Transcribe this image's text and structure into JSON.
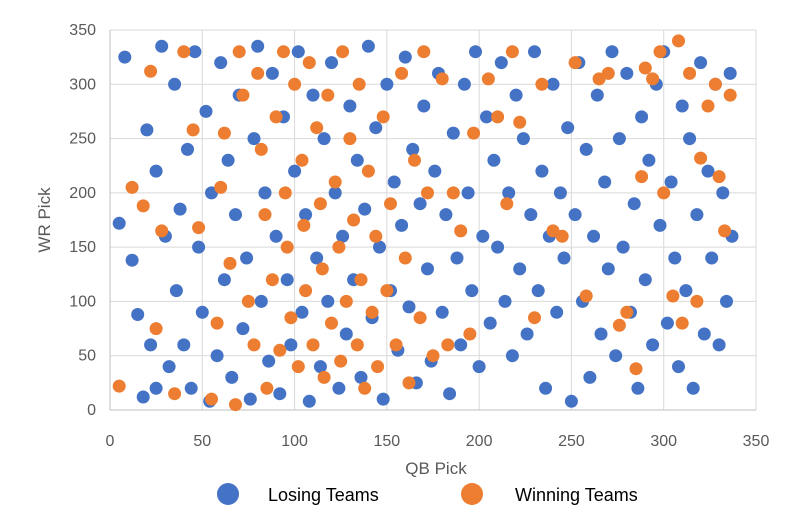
{
  "chart_data": {
    "type": "scatter",
    "xlabel": "QB Pick",
    "ylabel": "WR Pick",
    "xlim": [
      0,
      350
    ],
    "ylim": [
      0,
      350
    ],
    "x_ticks": [
      "0",
      "50",
      "100",
      "150",
      "200",
      "250",
      "300",
      "350"
    ],
    "y_ticks": [
      "0",
      "50",
      "100",
      "150",
      "200",
      "250",
      "300",
      "350"
    ],
    "grid": "both",
    "legend_position": "bottom",
    "series": [
      {
        "name": "Losing Teams",
        "color": "#4472c4",
        "points": [
          [
            5,
            172
          ],
          [
            12,
            138
          ],
          [
            8,
            325
          ],
          [
            15,
            88
          ],
          [
            18,
            12
          ],
          [
            20,
            258
          ],
          [
            22,
            60
          ],
          [
            25,
            20
          ],
          [
            25,
            220
          ],
          [
            28,
            335
          ],
          [
            30,
            160
          ],
          [
            32,
            40
          ],
          [
            35,
            300
          ],
          [
            36,
            110
          ],
          [
            38,
            185
          ],
          [
            40,
            60
          ],
          [
            42,
            240
          ],
          [
            44,
            20
          ],
          [
            46,
            330
          ],
          [
            48,
            150
          ],
          [
            50,
            90
          ],
          [
            52,
            275
          ],
          [
            54,
            8
          ],
          [
            55,
            200
          ],
          [
            58,
            50
          ],
          [
            60,
            320
          ],
          [
            62,
            120
          ],
          [
            64,
            230
          ],
          [
            66,
            30
          ],
          [
            68,
            180
          ],
          [
            70,
            290
          ],
          [
            72,
            75
          ],
          [
            74,
            140
          ],
          [
            76,
            10
          ],
          [
            78,
            250
          ],
          [
            80,
            335
          ],
          [
            82,
            100
          ],
          [
            84,
            200
          ],
          [
            86,
            45
          ],
          [
            88,
            310
          ],
          [
            90,
            160
          ],
          [
            92,
            15
          ],
          [
            94,
            270
          ],
          [
            96,
            120
          ],
          [
            98,
            60
          ],
          [
            100,
            220
          ],
          [
            102,
            330
          ],
          [
            104,
            90
          ],
          [
            106,
            180
          ],
          [
            108,
            8
          ],
          [
            110,
            290
          ],
          [
            112,
            140
          ],
          [
            114,
            40
          ],
          [
            116,
            250
          ],
          [
            118,
            100
          ],
          [
            120,
            320
          ],
          [
            122,
            200
          ],
          [
            124,
            20
          ],
          [
            126,
            160
          ],
          [
            128,
            70
          ],
          [
            130,
            280
          ],
          [
            132,
            120
          ],
          [
            134,
            230
          ],
          [
            136,
            30
          ],
          [
            138,
            185
          ],
          [
            140,
            335
          ],
          [
            142,
            85
          ],
          [
            144,
            260
          ],
          [
            146,
            150
          ],
          [
            148,
            10
          ],
          [
            150,
            300
          ],
          [
            152,
            110
          ],
          [
            154,
            210
          ],
          [
            156,
            55
          ],
          [
            158,
            170
          ],
          [
            160,
            325
          ],
          [
            162,
            95
          ],
          [
            164,
            240
          ],
          [
            166,
            25
          ],
          [
            168,
            190
          ],
          [
            170,
            280
          ],
          [
            172,
            130
          ],
          [
            174,
            45
          ],
          [
            176,
            220
          ],
          [
            178,
            310
          ],
          [
            180,
            90
          ],
          [
            182,
            180
          ],
          [
            184,
            15
          ],
          [
            186,
            255
          ],
          [
            188,
            140
          ],
          [
            190,
            60
          ],
          [
            192,
            300
          ],
          [
            194,
            200
          ],
          [
            196,
            110
          ],
          [
            198,
            330
          ],
          [
            200,
            40
          ],
          [
            202,
            160
          ],
          [
            204,
            270
          ],
          [
            206,
            80
          ],
          [
            208,
            230
          ],
          [
            210,
            150
          ],
          [
            212,
            320
          ],
          [
            214,
            100
          ],
          [
            216,
            200
          ],
          [
            218,
            50
          ],
          [
            220,
            290
          ],
          [
            222,
            130
          ],
          [
            224,
            250
          ],
          [
            226,
            70
          ],
          [
            228,
            180
          ],
          [
            230,
            330
          ],
          [
            232,
            110
          ],
          [
            234,
            220
          ],
          [
            236,
            20
          ],
          [
            238,
            160
          ],
          [
            240,
            300
          ],
          [
            242,
            90
          ],
          [
            244,
            200
          ],
          [
            246,
            140
          ],
          [
            248,
            260
          ],
          [
            250,
            8
          ],
          [
            252,
            180
          ],
          [
            254,
            320
          ],
          [
            256,
            100
          ],
          [
            258,
            240
          ],
          [
            260,
            30
          ],
          [
            262,
            160
          ],
          [
            264,
            290
          ],
          [
            266,
            70
          ],
          [
            268,
            210
          ],
          [
            270,
            130
          ],
          [
            272,
            330
          ],
          [
            274,
            50
          ],
          [
            276,
            250
          ],
          [
            278,
            150
          ],
          [
            280,
            310
          ],
          [
            282,
            90
          ],
          [
            284,
            190
          ],
          [
            286,
            20
          ],
          [
            288,
            270
          ],
          [
            290,
            120
          ],
          [
            292,
            230
          ],
          [
            294,
            60
          ],
          [
            296,
            300
          ],
          [
            298,
            170
          ],
          [
            300,
            330
          ],
          [
            302,
            80
          ],
          [
            304,
            210
          ],
          [
            306,
            140
          ],
          [
            308,
            40
          ],
          [
            310,
            280
          ],
          [
            312,
            110
          ],
          [
            314,
            250
          ],
          [
            316,
            20
          ],
          [
            318,
            180
          ],
          [
            320,
            320
          ],
          [
            322,
            70
          ],
          [
            324,
            220
          ],
          [
            326,
            140
          ],
          [
            328,
            300
          ],
          [
            330,
            60
          ],
          [
            332,
            200
          ],
          [
            334,
            100
          ],
          [
            336,
            310
          ],
          [
            337,
            160
          ]
        ]
      },
      {
        "name": "Winning Teams",
        "color": "#ed7d31",
        "points": [
          [
            5,
            22
          ],
          [
            12,
            205
          ],
          [
            18,
            188
          ],
          [
            22,
            312
          ],
          [
            25,
            75
          ],
          [
            28,
            165
          ],
          [
            35,
            15
          ],
          [
            40,
            330
          ],
          [
            45,
            258
          ],
          [
            48,
            168
          ],
          [
            55,
            10
          ],
          [
            58,
            80
          ],
          [
            60,
            205
          ],
          [
            62,
            255
          ],
          [
            65,
            135
          ],
          [
            68,
            5
          ],
          [
            70,
            330
          ],
          [
            72,
            290
          ],
          [
            75,
            100
          ],
          [
            78,
            60
          ],
          [
            80,
            310
          ],
          [
            82,
            240
          ],
          [
            84,
            180
          ],
          [
            85,
            20
          ],
          [
            88,
            120
          ],
          [
            90,
            270
          ],
          [
            92,
            55
          ],
          [
            94,
            330
          ],
          [
            95,
            200
          ],
          [
            96,
            150
          ],
          [
            98,
            85
          ],
          [
            100,
            300
          ],
          [
            102,
            40
          ],
          [
            104,
            230
          ],
          [
            105,
            170
          ],
          [
            106,
            110
          ],
          [
            108,
            320
          ],
          [
            110,
            60
          ],
          [
            112,
            260
          ],
          [
            114,
            190
          ],
          [
            115,
            130
          ],
          [
            116,
            30
          ],
          [
            118,
            290
          ],
          [
            120,
            80
          ],
          [
            122,
            210
          ],
          [
            124,
            150
          ],
          [
            125,
            45
          ],
          [
            126,
            330
          ],
          [
            128,
            100
          ],
          [
            130,
            250
          ],
          [
            132,
            175
          ],
          [
            134,
            60
          ],
          [
            135,
            300
          ],
          [
            136,
            120
          ],
          [
            138,
            20
          ],
          [
            140,
            220
          ],
          [
            142,
            90
          ],
          [
            144,
            160
          ],
          [
            145,
            40
          ],
          [
            148,
            270
          ],
          [
            150,
            110
          ],
          [
            152,
            190
          ],
          [
            155,
            60
          ],
          [
            158,
            310
          ],
          [
            160,
            140
          ],
          [
            162,
            25
          ],
          [
            165,
            230
          ],
          [
            168,
            85
          ],
          [
            170,
            330
          ],
          [
            172,
            200
          ],
          [
            175,
            50
          ],
          [
            180,
            305
          ],
          [
            183,
            60
          ],
          [
            186,
            200
          ],
          [
            190,
            165
          ],
          [
            195,
            70
          ],
          [
            197,
            255
          ],
          [
            205,
            305
          ],
          [
            210,
            270
          ],
          [
            215,
            190
          ],
          [
            218,
            330
          ],
          [
            222,
            265
          ],
          [
            230,
            85
          ],
          [
            234,
            300
          ],
          [
            240,
            165
          ],
          [
            245,
            160
          ],
          [
            252,
            320
          ],
          [
            258,
            105
          ],
          [
            265,
            305
          ],
          [
            270,
            310
          ],
          [
            276,
            78
          ],
          [
            280,
            90
          ],
          [
            285,
            38
          ],
          [
            288,
            215
          ],
          [
            290,
            315
          ],
          [
            294,
            305
          ],
          [
            298,
            330
          ],
          [
            300,
            200
          ],
          [
            305,
            105
          ],
          [
            308,
            340
          ],
          [
            310,
            80
          ],
          [
            314,
            310
          ],
          [
            318,
            100
          ],
          [
            320,
            232
          ],
          [
            324,
            280
          ],
          [
            328,
            300
          ],
          [
            330,
            215
          ],
          [
            333,
            165
          ],
          [
            336,
            290
          ]
        ]
      }
    ]
  }
}
